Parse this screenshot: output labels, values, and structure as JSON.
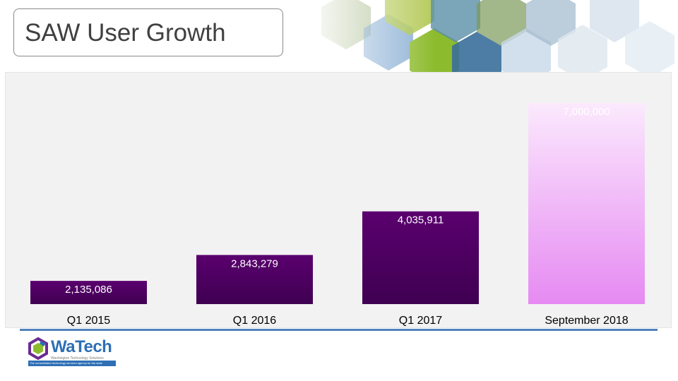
{
  "slide": {
    "title": "SAW User Growth"
  },
  "logo": {
    "word": "WaTech",
    "subtitle": "Washington Technology Solutions",
    "band_text": "The consolidated technology services agency for the state"
  },
  "colors": {
    "bar_dark_top": "#5a006e",
    "bar_dark_bottom": "#3f0052",
    "bar_projected_top": "#fbe9fd",
    "bar_projected_bottom": "#e68af2",
    "panel_bg": "#f2f2f2",
    "rule": "#4f81bd"
  },
  "chart_data": {
    "type": "bar",
    "title": "",
    "xlabel": "",
    "ylabel": "",
    "categories": [
      "Q1 2015",
      "Q1 2016",
      "Q1 2017",
      "September 2018"
    ],
    "values": [
      2135086,
      2843279,
      4035911,
      7000000
    ],
    "data_labels": [
      "2,135,086",
      "2,843,279",
      "4,035,911",
      "7,000,000"
    ],
    "ylim": [
      1500000,
      7000000
    ],
    "grid": false,
    "legend": "none"
  }
}
